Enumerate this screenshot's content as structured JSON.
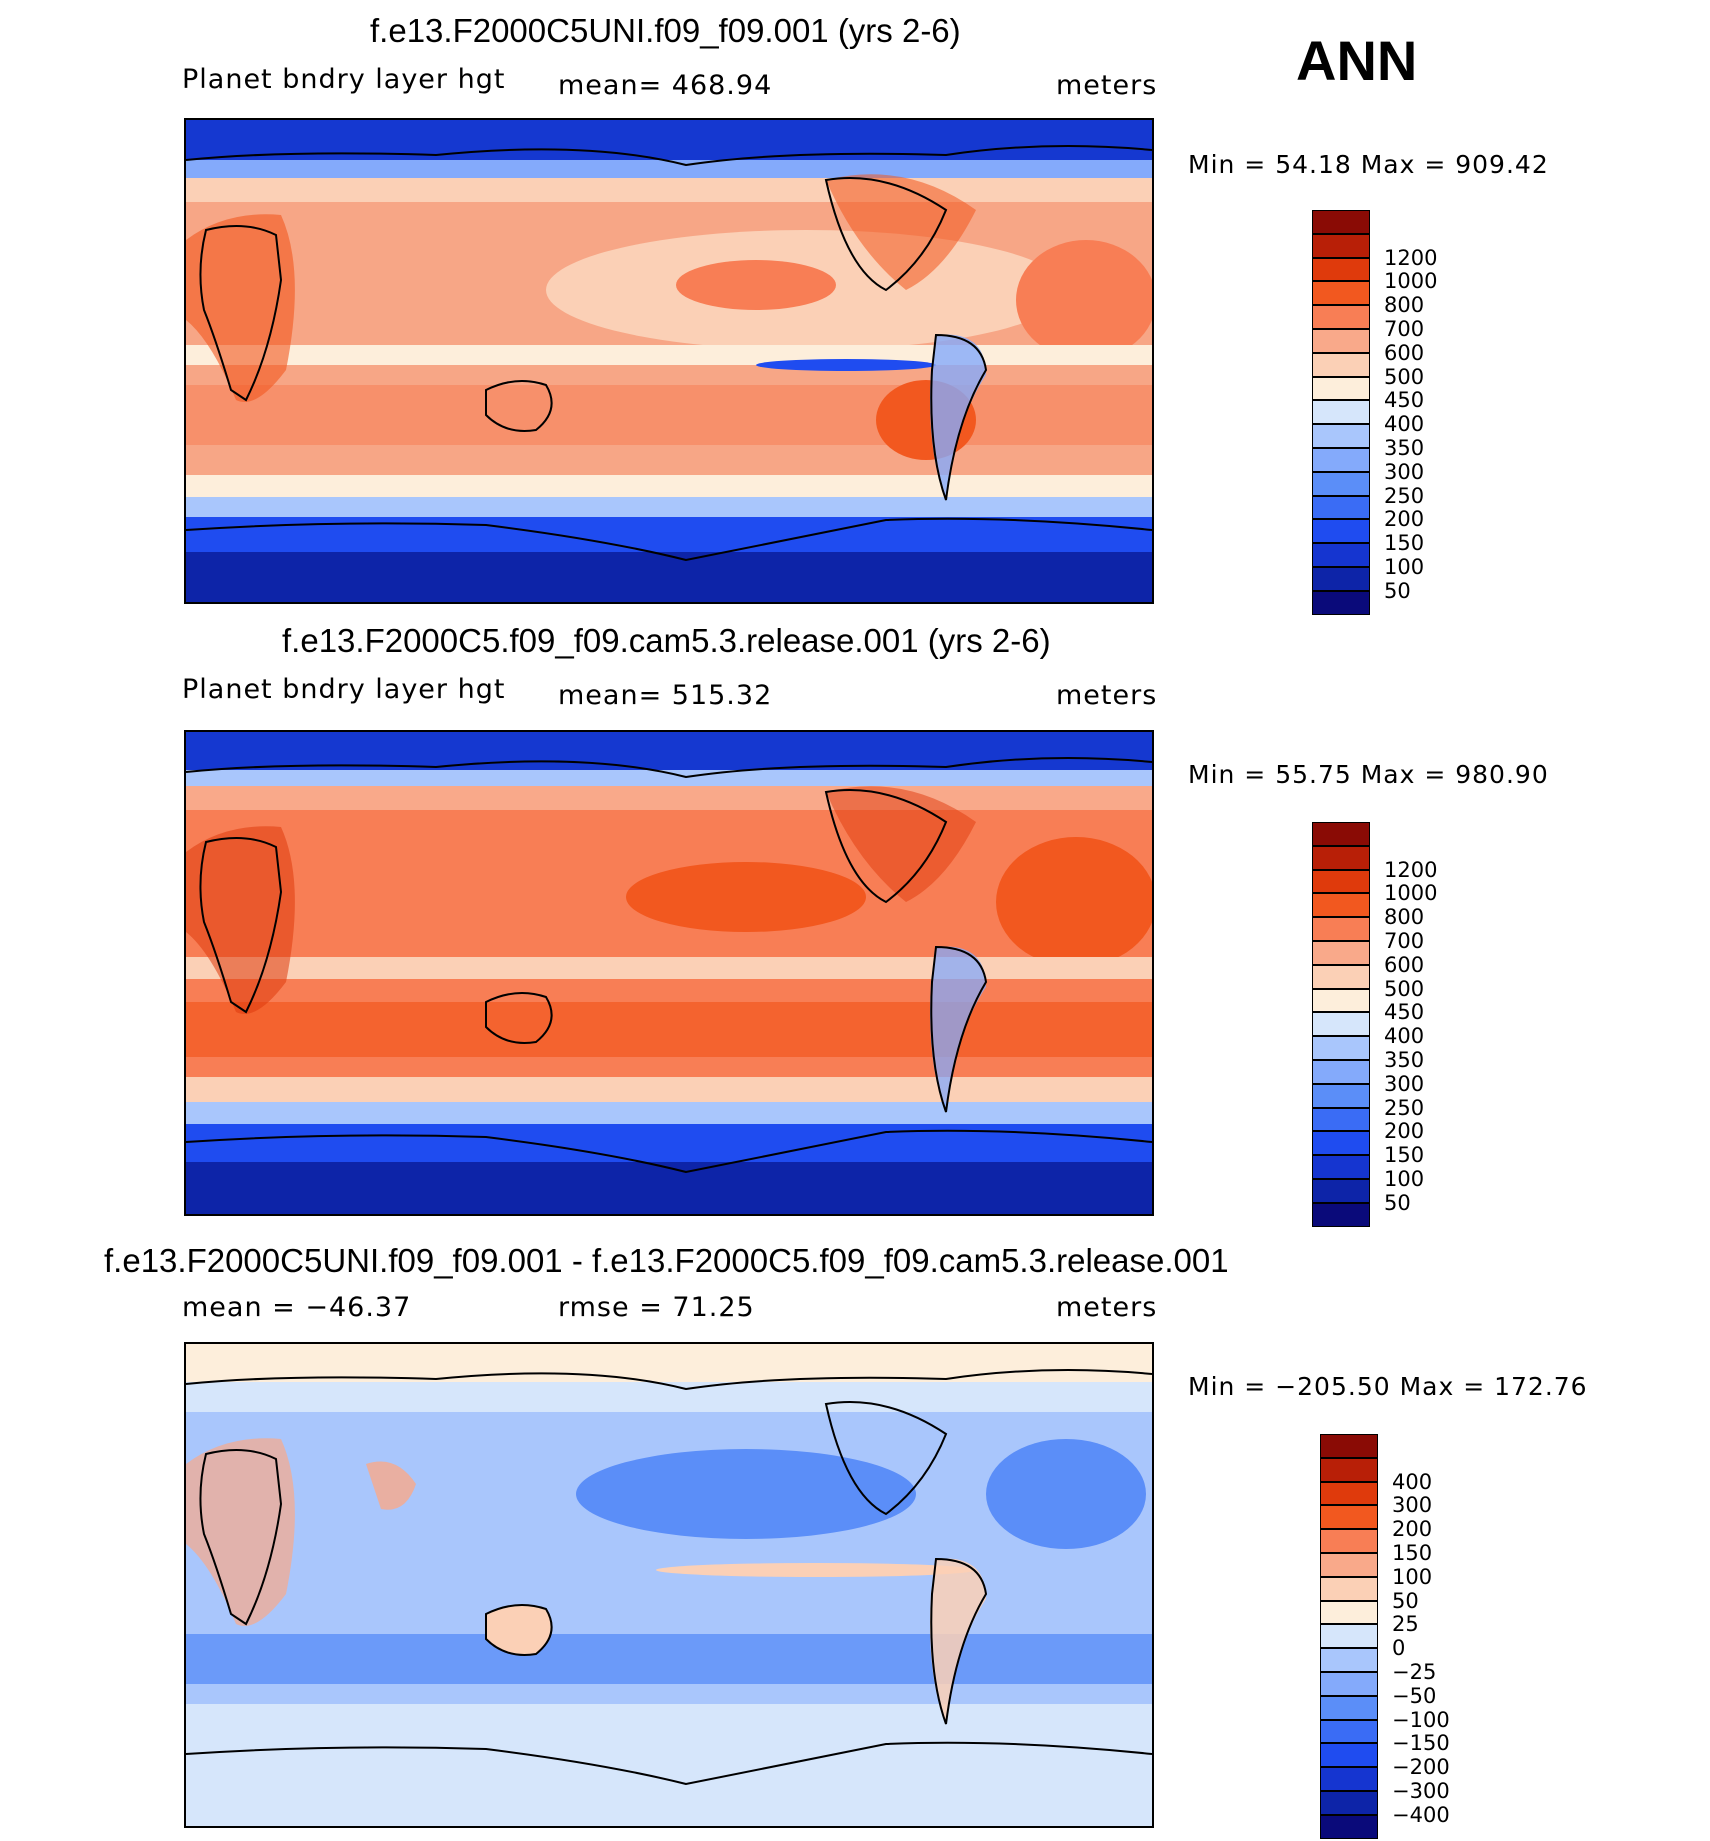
{
  "season": "ANN",
  "panels": [
    {
      "title": "f.e13.F2000C5UNI.f09_f09.001 (yrs 2-6)",
      "left_label": "Planet bndry layer hgt",
      "center_label": "mean=  468.94",
      "right_label": "meters",
      "minmax": "Min =   54.18 Max  =  909.42",
      "colorbar": {
        "colors": [
          "#0a0a7a",
          "#0d24a8",
          "#1535d0",
          "#1f4cf0",
          "#3a6cf5",
          "#5b8ef8",
          "#84aafb",
          "#a9c6fc",
          "#d6e6fb",
          "#fdeedb",
          "#fbd0b6",
          "#f9a98a",
          "#f87e55",
          "#f2581f",
          "#df3a0c",
          "#b81f07",
          "#8a0b05"
        ],
        "labels": [
          "50",
          "100",
          "150",
          "200",
          "250",
          "300",
          "350",
          "400",
          "450",
          "500",
          "600",
          "700",
          "800",
          "1000",
          "1200"
        ]
      }
    },
    {
      "title": "f.e13.F2000C5.f09_f09.cam5.3.release.001 (yrs 2-6)",
      "left_label": "Planet bndry layer hgt",
      "center_label": "mean=  515.32",
      "right_label": "meters",
      "minmax": "Min =   55.75 Max  =  980.90",
      "colorbar": {
        "colors": [
          "#0a0a7a",
          "#0d24a8",
          "#1535d0",
          "#1f4cf0",
          "#3a6cf5",
          "#5b8ef8",
          "#84aafb",
          "#a9c6fc",
          "#d6e6fb",
          "#fdeedb",
          "#fbd0b6",
          "#f9a98a",
          "#f87e55",
          "#f2581f",
          "#df3a0c",
          "#b81f07",
          "#8a0b05"
        ],
        "labels": [
          "50",
          "100",
          "150",
          "200",
          "250",
          "300",
          "350",
          "400",
          "450",
          "500",
          "600",
          "700",
          "800",
          "1000",
          "1200"
        ]
      }
    },
    {
      "title": "f.e13.F2000C5UNI.f09_f09.001 - f.e13.F2000C5.f09_f09.cam5.3.release.001",
      "left_label": "mean  =  −46.37",
      "center_label": "rmse  =    71.25",
      "right_label": "meters",
      "minmax": "Min  = −205.50 Max  =  172.76",
      "colorbar": {
        "colors": [
          "#0a0a7a",
          "#0d24a8",
          "#1535d0",
          "#1f4cf0",
          "#3a6cf5",
          "#5b8ef8",
          "#84aafb",
          "#a9c6fc",
          "#d6e6fb",
          "#fdeedb",
          "#fbd0b6",
          "#f9a98a",
          "#f87e55",
          "#f2581f",
          "#df3a0c",
          "#b81f07",
          "#8a0b05"
        ],
        "labels": [
          "−400",
          "−300",
          "−200",
          "−150",
          "−100",
          "−50",
          "−25",
          "0",
          "25",
          "50",
          "100",
          "150",
          "200",
          "300",
          "400"
        ]
      }
    }
  ],
  "chart_data": [
    {
      "type": "heatmap",
      "title": "f.e13.F2000C5UNI.f09_f09.001 (yrs 2-6)",
      "variable": "Planet bndry layer hgt",
      "units": "meters",
      "mean": 468.94,
      "min": 54.18,
      "max": 909.42,
      "levels": [
        50,
        100,
        150,
        200,
        250,
        300,
        350,
        400,
        450,
        500,
        600,
        700,
        800,
        1000,
        1200
      ]
    },
    {
      "type": "heatmap",
      "title": "f.e13.F2000C5.f09_f09.cam5.3.release.001 (yrs 2-6)",
      "variable": "Planet bndry layer hgt",
      "units": "meters",
      "mean": 515.32,
      "min": 55.75,
      "max": 980.9,
      "levels": [
        50,
        100,
        150,
        200,
        250,
        300,
        350,
        400,
        450,
        500,
        600,
        700,
        800,
        1000,
        1200
      ]
    },
    {
      "type": "heatmap",
      "title": "f.e13.F2000C5UNI.f09_f09.001 - f.e13.F2000C5.f09_f09.cam5.3.release.001",
      "units": "meters",
      "mean": -46.37,
      "rmse": 71.25,
      "min": -205.5,
      "max": 172.76,
      "levels": [
        -400,
        -300,
        -200,
        -150,
        -100,
        -50,
        -25,
        0,
        25,
        50,
        100,
        150,
        200,
        300,
        400
      ]
    }
  ]
}
